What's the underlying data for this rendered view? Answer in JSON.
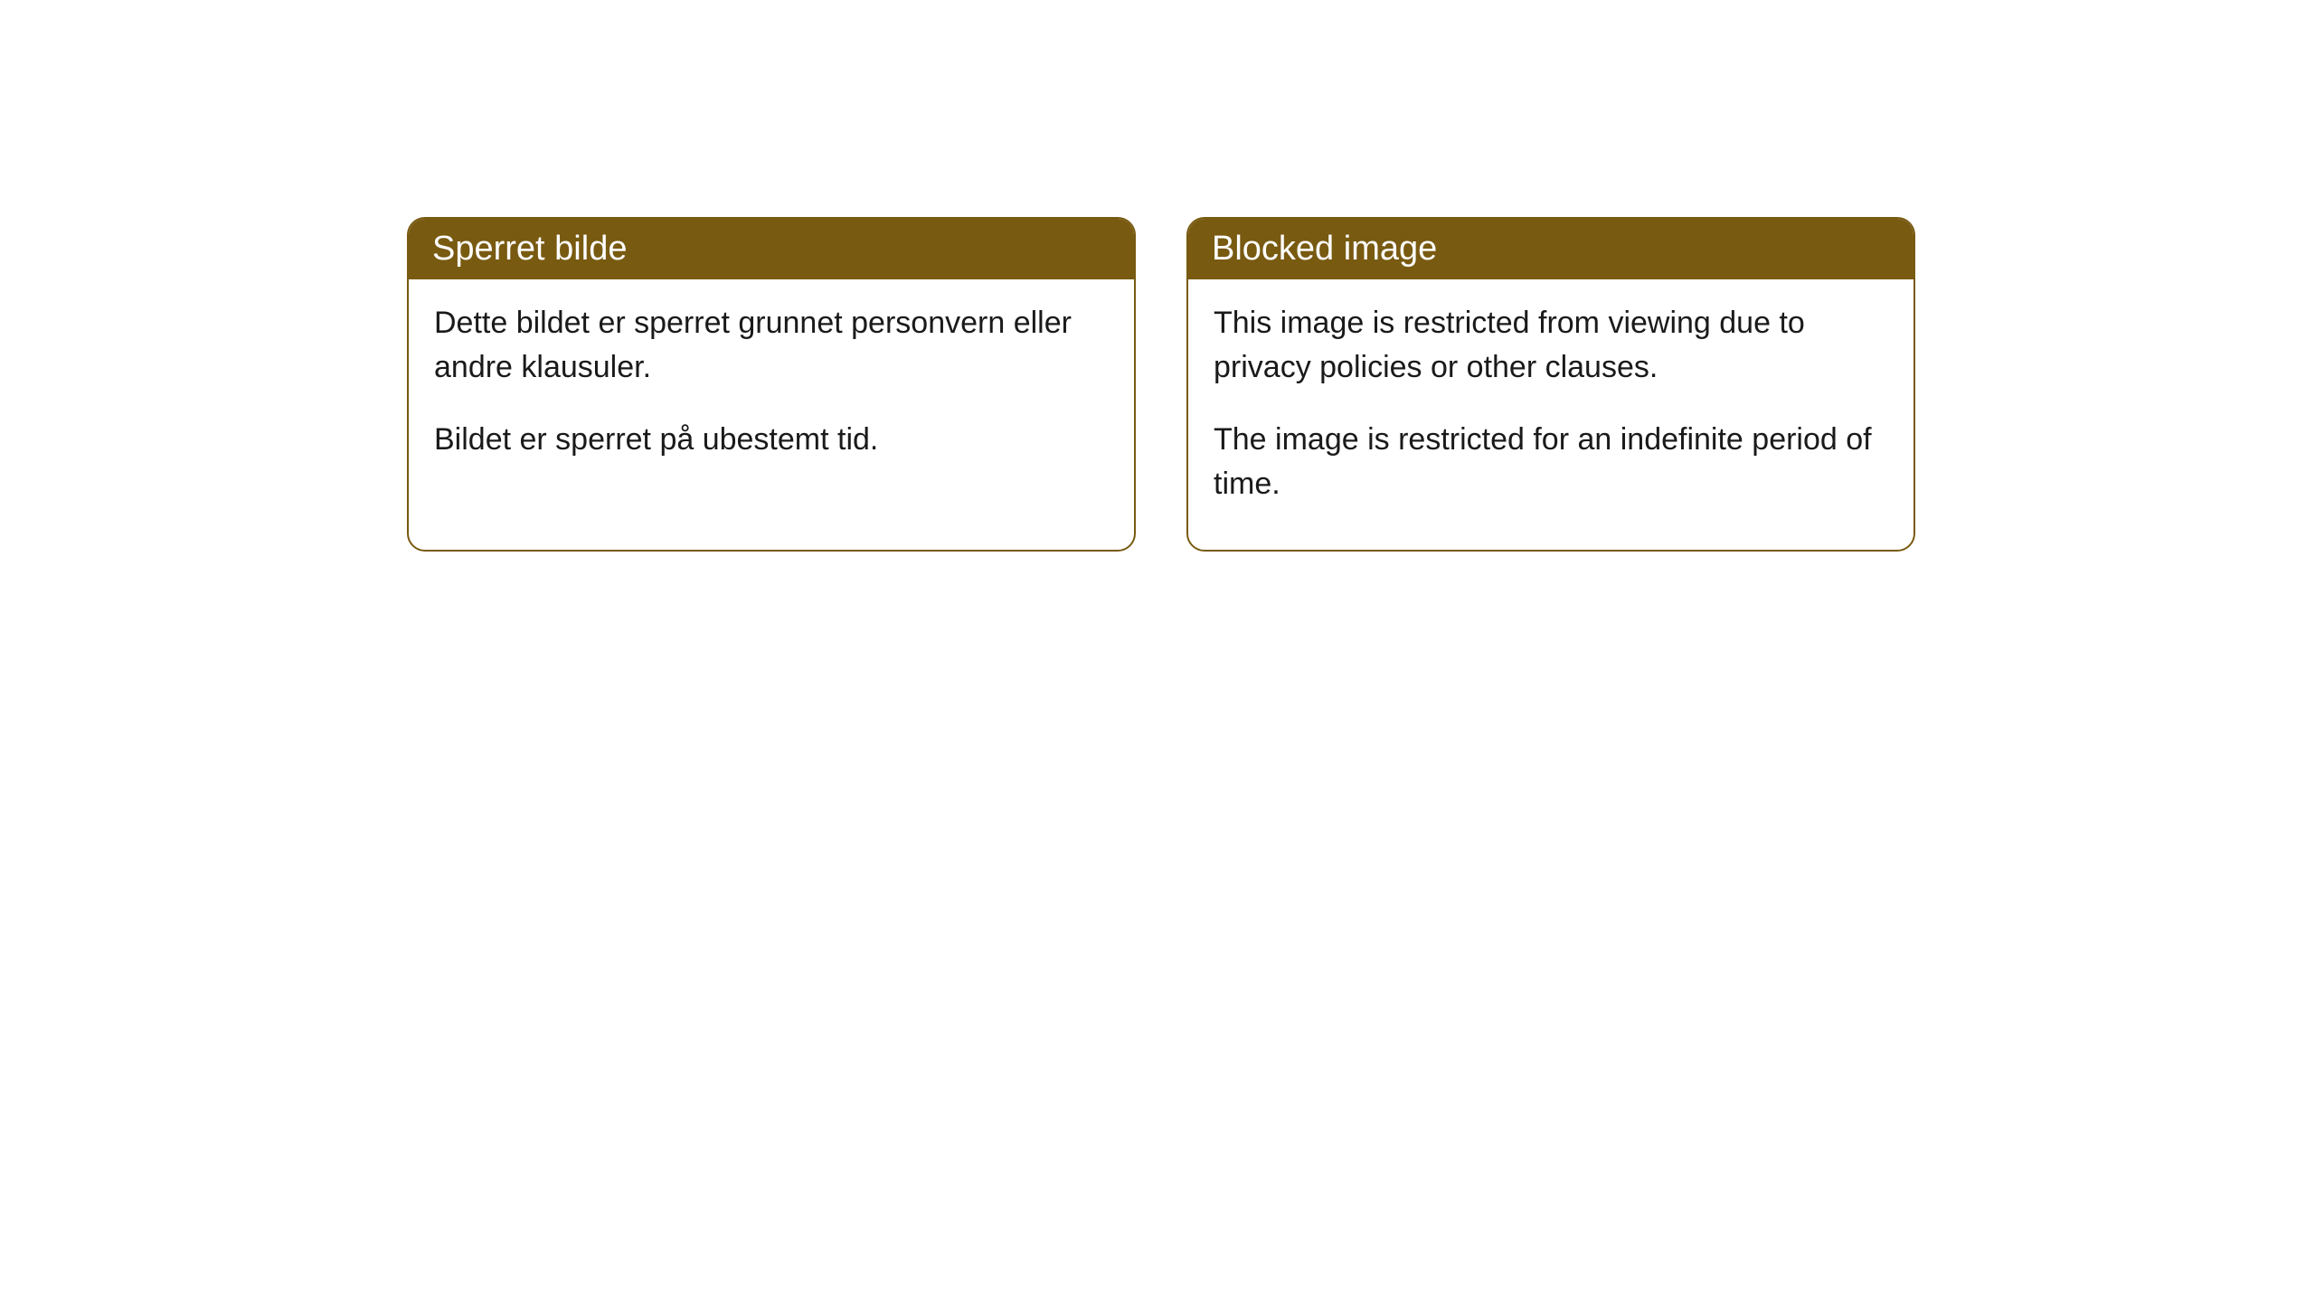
{
  "cards": [
    {
      "title": "Sperret bilde",
      "paragraph1": "Dette bildet er sperret grunnet personvern eller andre klausuler.",
      "paragraph2": "Bildet er sperret på ubestemt tid."
    },
    {
      "title": "Blocked image",
      "paragraph1": "This image is restricted from viewing due to privacy policies or other clauses.",
      "paragraph2": "The image is restricted for an indefinite period of time."
    }
  ],
  "styling": {
    "header_bg_color": "#785a11",
    "header_text_color": "#ffffff",
    "border_color": "#785a11",
    "body_text_color": "#1a1a1a",
    "card_bg_color": "#ffffff",
    "page_bg_color": "#ffffff",
    "border_radius": 20,
    "header_fontsize": 38,
    "body_fontsize": 34
  }
}
